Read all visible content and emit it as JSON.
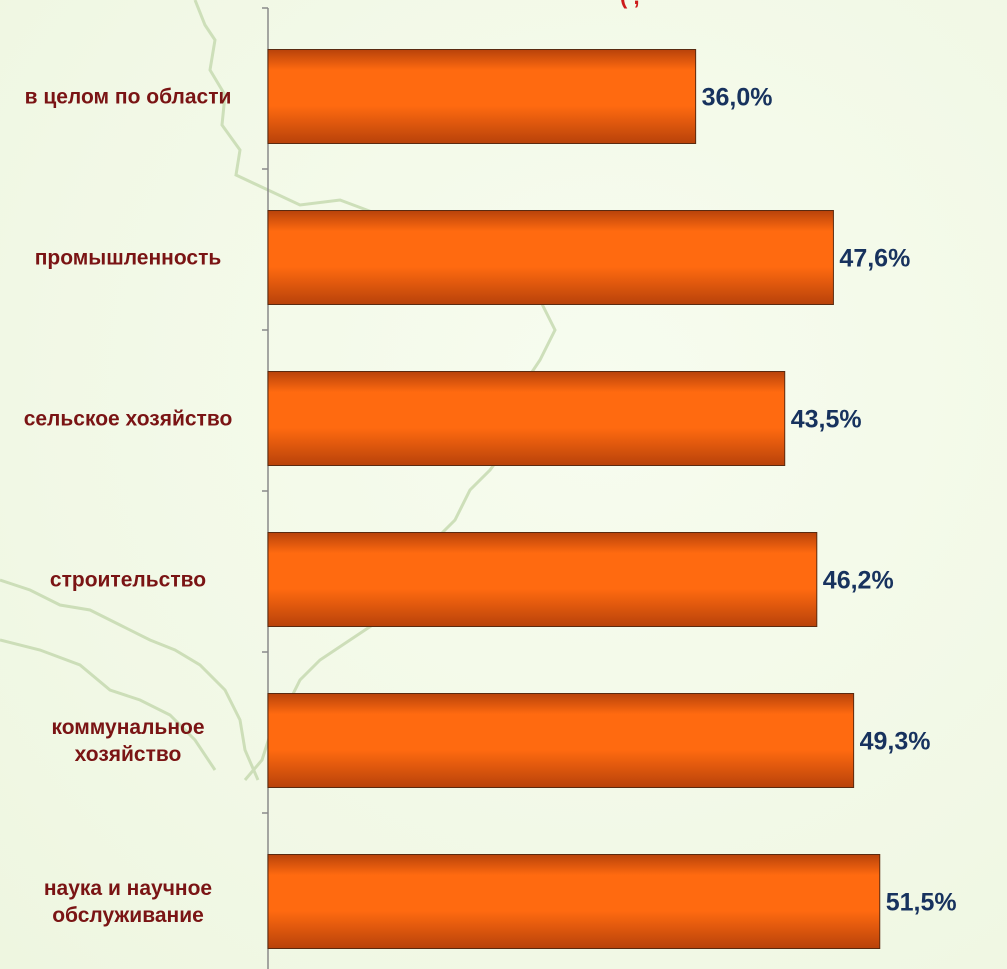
{
  "chart_data": {
    "type": "bar",
    "orientation": "horizontal",
    "title": "",
    "xlabel": "",
    "ylabel": "",
    "categories": [
      [
        "в целом по области"
      ],
      [
        "промышленность"
      ],
      [
        "сельское хозяйство"
      ],
      [
        "строительство"
      ],
      [
        "коммунальное",
        "хозяйство"
      ],
      [
        "наука и научное",
        "обслуживание"
      ]
    ],
    "values": [
      36.0,
      47.6,
      43.5,
      46.2,
      49.3,
      51.5
    ],
    "value_labels": [
      "36,0%",
      "47,6%",
      "43,5%",
      "46,2%",
      "49,3%",
      "51,5%"
    ],
    "unit": "%",
    "xlim": [
      0,
      56
    ],
    "grid": false,
    "legend": "none",
    "colors": {
      "bar_light": "#ff6a10",
      "bar_dark": "#c44408",
      "category_text": "#7a1414",
      "value_text": "#17325e",
      "axis": "#8a8a8a",
      "map_lines": "#c9dcb4"
    }
  }
}
